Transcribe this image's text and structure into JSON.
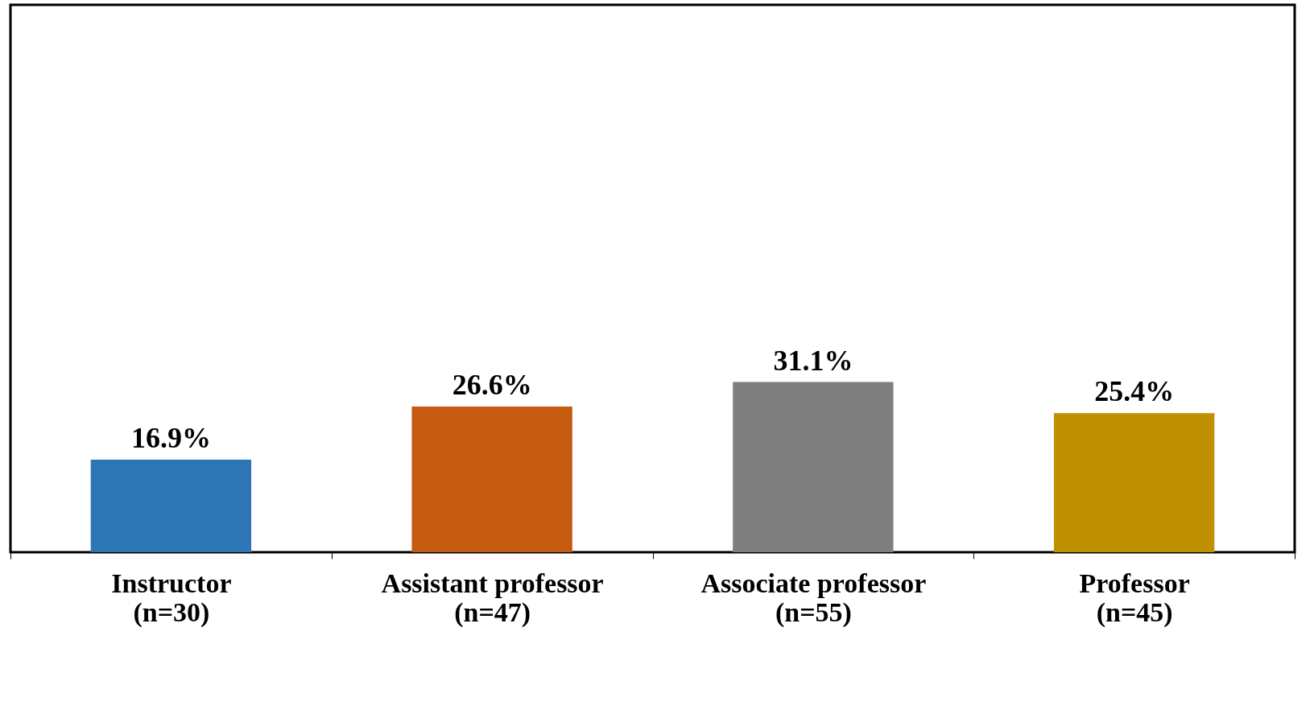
{
  "chart_data": {
    "type": "bar",
    "categories": [
      "Instructor\n(n=30)",
      "Assistant professor\n(n=47)",
      "Associate professor\n(n=55)",
      "Professor\n(n=45)"
    ],
    "values": [
      16.9,
      26.6,
      31.1,
      25.4
    ],
    "value_labels": [
      "16.9%",
      "26.6%",
      "31.1%",
      "25.4%"
    ],
    "colors": [
      "#2e75b6",
      "#c55a11",
      "#7f7f7f",
      "#bf9000"
    ],
    "ylim": [
      0,
      100
    ],
    "tick_labels": "x",
    "grid": false
  }
}
